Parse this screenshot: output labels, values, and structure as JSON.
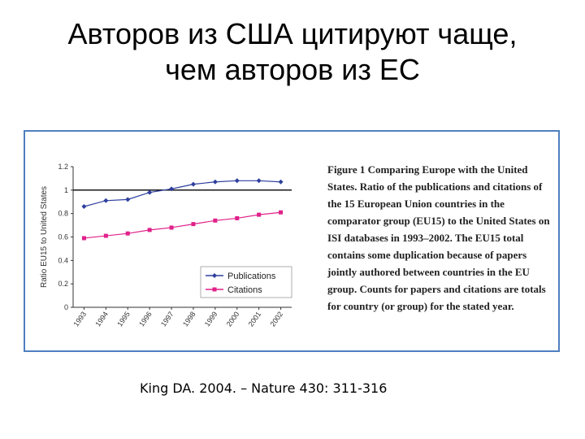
{
  "slide": {
    "title_line1": "Авторов из США цитируют чаще,",
    "title_line2": "чем авторов из ЕС",
    "citation": "King DA. 2004. – Nature 430: 311-316"
  },
  "figure": {
    "caption": "Figure 1 Comparing Europe with the United States. Ratio of the publications and citations of the 15 European Union countries in the comparator group (EU15) to the United States on ISI databases in 1993–2002. The EU15 total contains some duplication because of papers jointly authored between countries in the EU group. Counts for papers and citations are totals for country (or group) for the stated year."
  },
  "chart_data": {
    "type": "line",
    "ylabel": "Ratio EU15 to United States",
    "xlabel": "",
    "title": "",
    "x": [
      "1993",
      "1994",
      "1995",
      "1996",
      "1997",
      "1998",
      "1999",
      "2000",
      "2001",
      "2002"
    ],
    "yticks": [
      "0",
      "0.2",
      "0.4",
      "0.6",
      "0.8",
      "1",
      "1.2"
    ],
    "ylim": [
      0,
      1.2
    ],
    "reference_line": 1,
    "legend_position": "bottom-right",
    "series": [
      {
        "name": "Publications",
        "color": "#2e3f9e",
        "marker": "diamond",
        "values": [
          0.86,
          0.91,
          0.92,
          0.98,
          1.01,
          1.05,
          1.07,
          1.08,
          1.08,
          1.07
        ]
      },
      {
        "name": "Citations",
        "color": "#e0218a",
        "marker": "square",
        "values": [
          0.59,
          0.61,
          0.63,
          0.66,
          0.68,
          0.71,
          0.74,
          0.76,
          0.79,
          0.81
        ]
      }
    ]
  }
}
